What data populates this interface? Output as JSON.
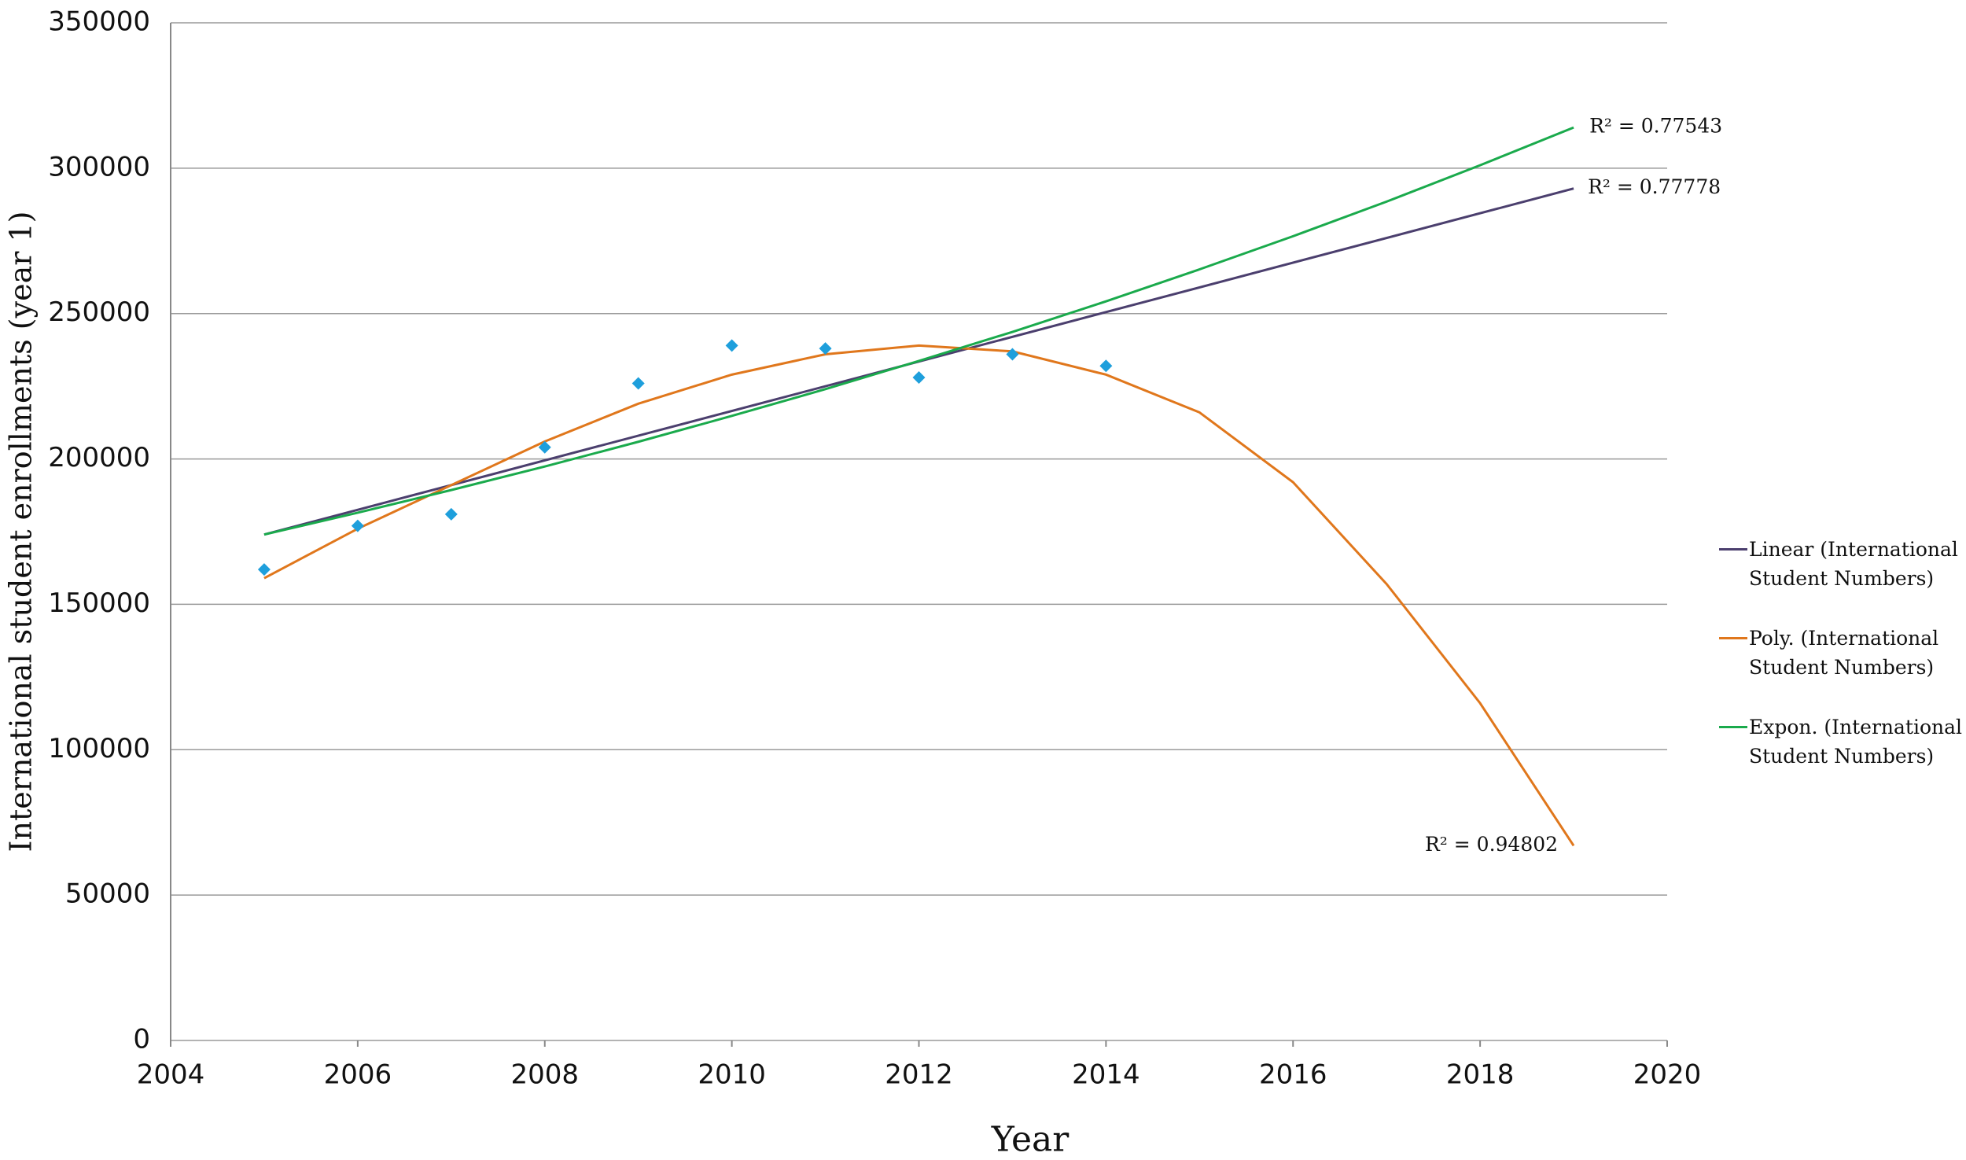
{
  "chart_data": {
    "type": "scatter",
    "x_label": "Year",
    "y_label": "International student enrollments (year 1)",
    "xlim": [
      2004,
      2020
    ],
    "xticks": [
      2004,
      2006,
      2008,
      2010,
      2012,
      2014,
      2016,
      2018,
      2020
    ],
    "ylim": [
      0,
      350000
    ],
    "yticks": [
      0,
      50000,
      100000,
      150000,
      200000,
      250000,
      300000,
      350000
    ],
    "grid": true,
    "legend": "right",
    "points": {
      "color": "#1e9fdc",
      "marker": "diamond",
      "x": [
        2005,
        2006,
        2007,
        2008,
        2009,
        2010,
        2011,
        2012,
        2013,
        2014
      ],
      "values": [
        162000,
        177000,
        181000,
        204000,
        226000,
        239000,
        238000,
        228000,
        236000,
        232000
      ]
    },
    "series": [
      {
        "name": "Linear  (International Student Numbers)",
        "color": "#4b3f6e",
        "label": "R² = 0.77778",
        "x": [
          2005,
          2019
        ],
        "values": [
          174000,
          293000
        ]
      },
      {
        "name": "Poly.  (International Student Numbers)",
        "color": "#e0771c",
        "label": "R² = 0.94802",
        "x": [
          2005,
          2006,
          2007,
          2008,
          2009,
          2010,
          2011,
          2012,
          2013,
          2014,
          2015,
          2016,
          2017,
          2018,
          2019
        ],
        "values": [
          159000,
          176000,
          191000,
          206000,
          219000,
          229000,
          236000,
          239000,
          237000,
          229000,
          216000,
          192000,
          157000,
          116000,
          67000
        ]
      },
      {
        "name": "Expon.  (International Student Numbers)",
        "color": "#1aaa4c",
        "label": "R² = 0.77543",
        "x": [
          2005,
          2006,
          2007,
          2008,
          2009,
          2010,
          2011,
          2012,
          2013,
          2014,
          2015,
          2016,
          2017,
          2018,
          2019
        ],
        "values": [
          174000,
          181500,
          189300,
          197400,
          205900,
          214800,
          224000,
          233700,
          243700,
          254200,
          265200,
          276600,
          288500,
          301000,
          314000
        ]
      }
    ]
  }
}
